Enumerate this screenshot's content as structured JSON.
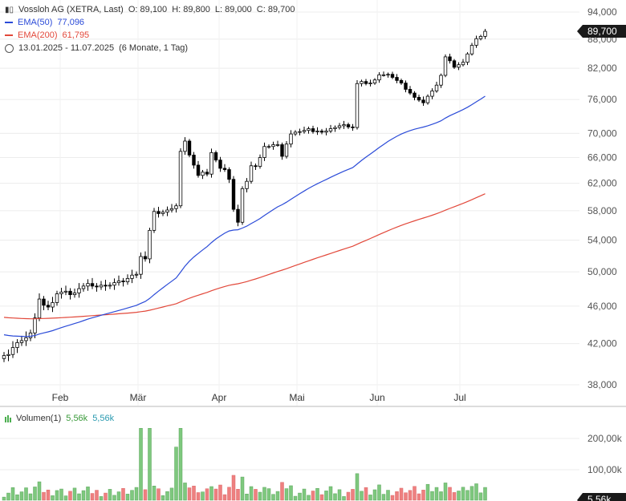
{
  "header": {
    "title": "Vossloh AG (XETRA, Last)",
    "ohlc": {
      "o": "O: 89,100",
      "h": "H: 89,800",
      "l": "L: 89,000",
      "c": "C: 89,700"
    },
    "ema50": {
      "label": "EMA(50)",
      "value": "77,096",
      "color": "#2b4bd8"
    },
    "ema200": {
      "label": "EMA(200)",
      "value": "61,795",
      "color": "#e2483a"
    },
    "range": "13.01.2025 - 11.07.2025",
    "range_detail": "(6 Monate, 1 Tag)"
  },
  "volume_panel": {
    "label": "Volumen(1)",
    "value1": "5,56k",
    "value2": "5,56k",
    "last_badge": "5,56k"
  },
  "last_price_badge": "89,700",
  "colors": {
    "up": "#ffffff",
    "down": "#000000",
    "ema50": "#2b4bd8",
    "ema200": "#e2483a",
    "vol_up": "#7ec87e",
    "vol_down": "#ee8080",
    "badge": "#1a1a1a"
  },
  "chart_data": {
    "type": "candlestick",
    "y_ticks": [
      "94,000",
      "88,000",
      "82,000",
      "76,000",
      "70,000",
      "66,000",
      "62,000",
      "58,000",
      "54,000",
      "50,000",
      "46,000",
      "42,000",
      "38,000"
    ],
    "x_ticks": [
      "Feb",
      "Mär",
      "Apr",
      "Mai",
      "Jun",
      "Jul"
    ],
    "vol_ticks": [
      "200,00k",
      "100,00k"
    ],
    "ylim": [
      37,
      94
    ],
    "close": [
      40.8,
      40.9,
      41.6,
      42.1,
      42.3,
      42.6,
      43.1,
      44.7,
      46.8,
      46.1,
      45.9,
      46.4,
      47.4,
      47.6,
      47.7,
      47.3,
      47.5,
      48.0,
      48.3,
      48.6,
      48.3,
      48.2,
      48.4,
      48.3,
      48.4,
      48.7,
      48.9,
      48.8,
      49.2,
      49.6,
      49.7,
      51.9,
      51.6,
      55.3,
      57.9,
      57.6,
      57.8,
      58.1,
      58.3,
      58.7,
      67.0,
      68.7,
      66.4,
      64.8,
      63.2,
      63.7,
      63.4,
      66.8,
      65.6,
      64.3,
      64.1,
      62.6,
      58.2,
      56.4,
      61.2,
      62.3,
      64.7,
      64.6,
      66.0,
      67.8,
      67.8,
      68.1,
      68.1,
      66.2,
      68.2,
      69.9,
      70.2,
      70.3,
      70.5,
      70.8,
      70.3,
      70.4,
      70.2,
      70.4,
      70.8,
      71.0,
      71.3,
      71.5,
      71.1,
      71.0,
      79.0,
      79.4,
      79.0,
      79.1,
      79.7,
      80.7,
      80.7,
      80.8,
      80.2,
      79.6,
      79.1,
      77.9,
      77.2,
      76.4,
      75.9,
      75.4,
      76.6,
      77.6,
      78.7,
      80.6,
      84.3,
      83.5,
      82.2,
      82.7,
      83.2,
      84.9,
      86.7,
      88.1,
      88.6,
      89.7
    ]
  }
}
